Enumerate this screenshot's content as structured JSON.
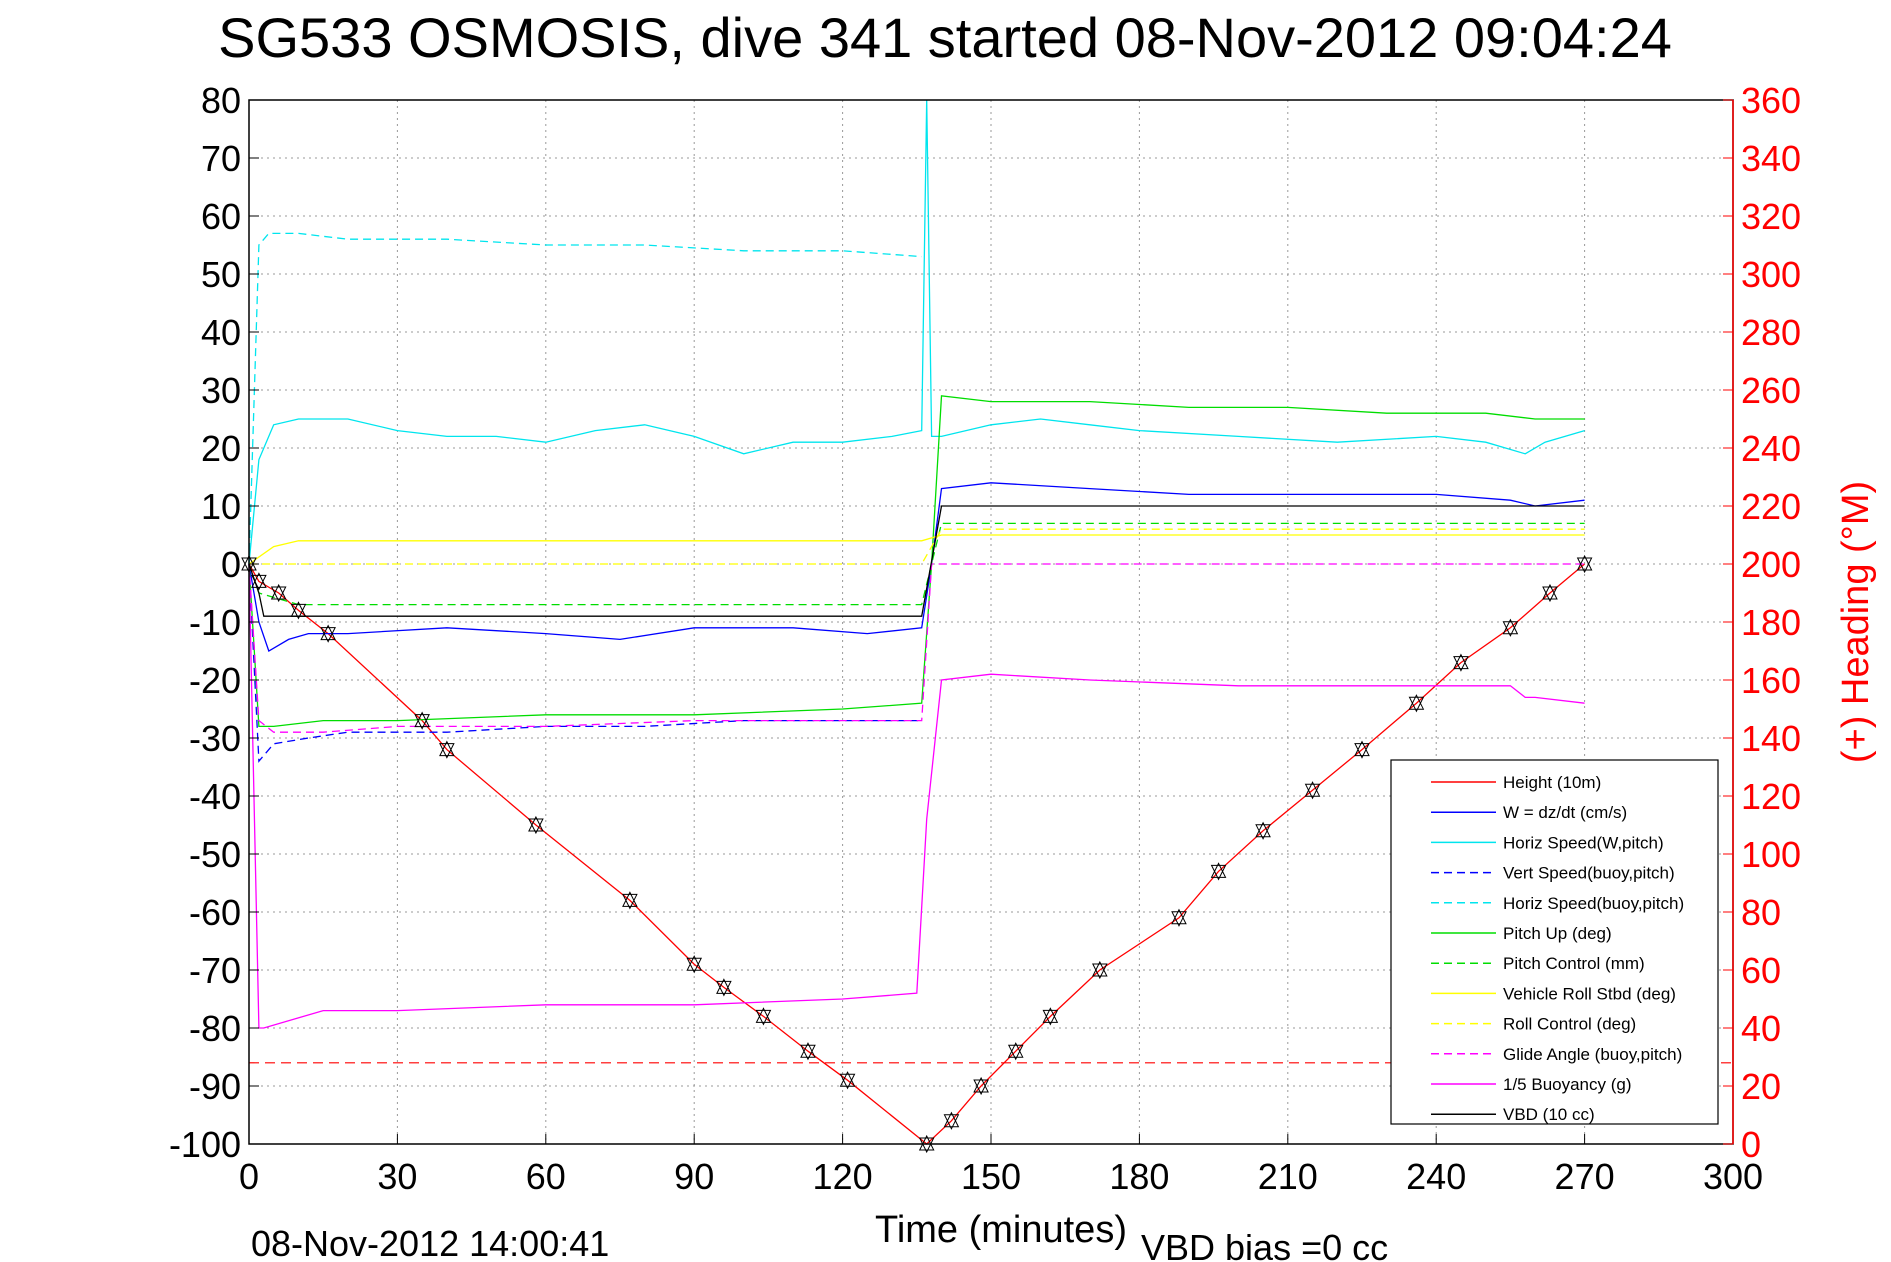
{
  "chart_data": {
    "type": "line",
    "title": "SG533 OSMOSIS, dive 341 started 08-Nov-2012 09:04:24",
    "xlabel": "Time (minutes)",
    "ylabel": "",
    "y2label": "(+) Heading (°M)",
    "xlim": [
      0,
      300
    ],
    "ylim": [
      -100,
      80
    ],
    "y2lim": [
      0,
      360
    ],
    "xticks": [
      0,
      30,
      60,
      90,
      120,
      150,
      180,
      210,
      240,
      270,
      300
    ],
    "yticks": [
      -100,
      -90,
      -80,
      -70,
      -60,
      -50,
      -40,
      -30,
      -20,
      -10,
      0,
      10,
      20,
      30,
      40,
      50,
      60,
      70,
      80
    ],
    "y2ticks": [
      0,
      20,
      40,
      60,
      80,
      100,
      120,
      140,
      160,
      180,
      200,
      220,
      240,
      260,
      280,
      300,
      320,
      340,
      360
    ],
    "grid": true,
    "legend_position": "bottom-right",
    "footer_left": "08-Nov-2012 14:00:41",
    "footer_right": "VBD bias =0 cc",
    "series": [
      {
        "name": "Height (10m)",
        "color": "#ff0000",
        "style": "solid",
        "x": [
          0,
          2,
          6,
          10,
          16,
          35,
          40,
          58,
          77,
          90,
          96,
          104,
          113,
          121,
          137,
          142,
          148,
          155,
          162,
          172,
          188,
          196,
          205,
          215,
          225,
          236,
          245,
          255,
          263,
          270
        ],
        "y": [
          0,
          -3,
          -5,
          -8,
          -12,
          -27,
          -32,
          -45,
          -58,
          -69,
          -73,
          -78,
          -84,
          -89,
          -100,
          -96,
          -90,
          -84,
          -78,
          -70,
          -61,
          -53,
          -46,
          -39,
          -32,
          -24,
          -17,
          -11,
          -5,
          0
        ]
      },
      {
        "name": "W = dz/dt (cm/s)",
        "color": "#0000ff",
        "style": "solid",
        "x": [
          0,
          2,
          4,
          8,
          12,
          20,
          40,
          60,
          75,
          90,
          110,
          125,
          136,
          138,
          140,
          150,
          170,
          190,
          210,
          240,
          255,
          260,
          270
        ],
        "y": [
          0,
          -10,
          -15,
          -13,
          -12,
          -12,
          -11,
          -12,
          -13,
          -11,
          -11,
          -12,
          -11,
          0,
          13,
          14,
          13,
          12,
          12,
          12,
          11,
          10,
          11
        ]
      },
      {
        "name": "Horiz Speed(W,pitch)",
        "color": "#00e5ee",
        "style": "solid",
        "x": [
          0,
          2,
          5,
          10,
          20,
          30,
          40,
          50,
          60,
          70,
          80,
          90,
          100,
          110,
          120,
          130,
          136,
          137,
          138,
          140,
          150,
          160,
          170,
          180,
          200,
          220,
          240,
          250,
          258,
          262,
          270
        ],
        "y": [
          0,
          18,
          24,
          25,
          25,
          23,
          22,
          22,
          21,
          23,
          24,
          22,
          19,
          21,
          21,
          22,
          23,
          80,
          22,
          22,
          24,
          25,
          24,
          23,
          22,
          21,
          22,
          21,
          19,
          21,
          23
        ]
      },
      {
        "name": "Vert Speed(buoy,pitch)",
        "color": "#0000ff",
        "style": "dashed",
        "x": [
          0,
          2,
          5,
          12,
          20,
          40,
          60,
          80,
          100,
          120,
          136
        ],
        "y": [
          0,
          -34,
          -31,
          -30,
          -29,
          -29,
          -28,
          -28,
          -27,
          -27,
          -27
        ]
      },
      {
        "name": "Horiz Speed(buoy,pitch)",
        "color": "#00e5ee",
        "style": "dashed",
        "x": [
          0,
          2,
          4,
          10,
          20,
          40,
          60,
          80,
          100,
          120,
          136
        ],
        "y": [
          0,
          55,
          57,
          57,
          56,
          56,
          55,
          55,
          54,
          54,
          53
        ]
      },
      {
        "name": "Pitch Up (deg)",
        "color": "#00dd00",
        "style": "solid",
        "x": [
          0,
          2,
          5,
          15,
          30,
          60,
          90,
          120,
          136,
          138,
          140,
          150,
          170,
          190,
          210,
          230,
          250,
          260,
          270
        ],
        "y": [
          0,
          -28,
          -28,
          -27,
          -27,
          -26,
          -26,
          -25,
          -24,
          0,
          29,
          28,
          28,
          27,
          27,
          26,
          26,
          25,
          25
        ]
      },
      {
        "name": "Pitch Control (mm)",
        "color": "#00dd00",
        "style": "dashed",
        "x": [
          0,
          2,
          10,
          30,
          60,
          90,
          120,
          136,
          138,
          140,
          160,
          200,
          240,
          270
        ],
        "y": [
          0,
          -5,
          -7,
          -7,
          -7,
          -7,
          -7,
          -7,
          0,
          7,
          7,
          7,
          7,
          7
        ]
      },
      {
        "name": "Vehicle Roll Stbd (deg)",
        "color": "#ffff00",
        "style": "solid",
        "x": [
          0,
          5,
          10,
          30,
          60,
          90,
          120,
          136,
          140,
          160,
          200,
          240,
          270
        ],
        "y": [
          0,
          3,
          4,
          4,
          4,
          4,
          4,
          4,
          5,
          5,
          5,
          5,
          5
        ]
      },
      {
        "name": "Roll Control (deg)",
        "color": "#ffff00",
        "style": "dashed",
        "x": [
          0,
          136,
          140,
          270
        ],
        "y": [
          0,
          0,
          6,
          6
        ]
      },
      {
        "name": "Glide Angle (buoy,pitch)",
        "color": "#ff00ff",
        "style": "dashed",
        "x": [
          0,
          2,
          5,
          15,
          30,
          60,
          90,
          120,
          136,
          138,
          140,
          160,
          200,
          240,
          270
        ],
        "y": [
          0,
          -27,
          -29,
          -29,
          -28,
          -28,
          -27,
          -27,
          -27,
          0,
          0,
          0,
          0,
          0,
          0
        ]
      },
      {
        "name": "1/5 Buoyancy (g)",
        "color": "#ff00ff",
        "style": "solid",
        "x": [
          0,
          2,
          3,
          15,
          30,
          60,
          90,
          120,
          135,
          137,
          140,
          150,
          170,
          200,
          240,
          255,
          258,
          260,
          270
        ],
        "y": [
          0,
          -80,
          -80,
          -77,
          -77,
          -76,
          -76,
          -75,
          -74,
          -44,
          -20,
          -19,
          -20,
          -21,
          -21,
          -21,
          -23,
          -23,
          -24
        ]
      },
      {
        "name": "VBD (10 cc)",
        "color": "#000000",
        "style": "solid",
        "x": [
          0,
          2,
          3,
          136,
          140,
          150,
          270
        ],
        "y": [
          0,
          -5,
          -9,
          -9,
          10,
          10,
          10
        ]
      }
    ],
    "heading_marker": {
      "color": "#ff0000",
      "axis": "right",
      "ref_line_value": 28
    }
  }
}
